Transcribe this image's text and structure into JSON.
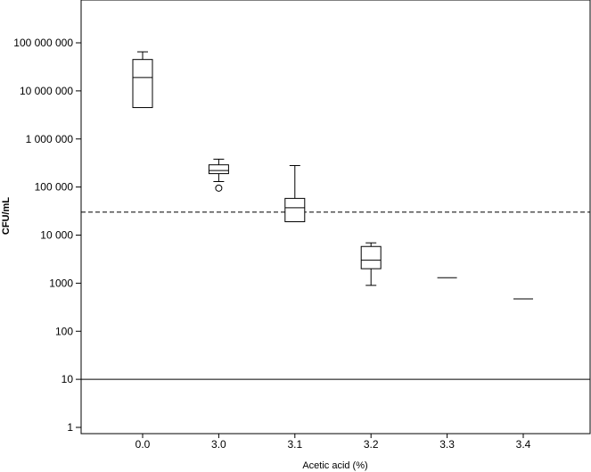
{
  "chart_data": {
    "type": "box",
    "xlabel": "Acetic acid (%)",
    "ylabel": "CFU/mL",
    "yscale": "log",
    "ylim": [
      1,
      1000000000
    ],
    "y_tick_values": [
      1,
      10,
      100,
      1000,
      10000,
      100000,
      1000000,
      10000000,
      100000000
    ],
    "y_tick_labels": [
      "1",
      "10",
      "100",
      "1000",
      "10 000",
      "100 000",
      "1 000 000",
      "10 000 000",
      "100 000 000"
    ],
    "categories": [
      "0.0",
      "3.0",
      "3.1",
      "3.2",
      "3.3",
      "3.4"
    ],
    "boxes": [
      {
        "category": "0.0",
        "whisker_low": 4500000,
        "q1": 4500000,
        "median": 19000000,
        "q3": 45000000,
        "whisker_high": 65000000,
        "outliers": []
      },
      {
        "category": "3.0",
        "whisker_low": 130000,
        "q1": 190000,
        "median": 220000,
        "q3": 290000,
        "whisker_high": 380000,
        "outliers": [
          95000
        ]
      },
      {
        "category": "3.1",
        "whisker_low": 19000,
        "q1": 19000,
        "median": 37000,
        "q3": 58000,
        "whisker_high": 280000,
        "outliers": []
      },
      {
        "category": "3.2",
        "whisker_low": 900,
        "q1": 2000,
        "median": 3000,
        "q3": 5800,
        "whisker_high": 6900,
        "outliers": []
      },
      {
        "category": "3.3",
        "whisker_low": 1300,
        "q1": 1300,
        "median": 1300,
        "q3": 1300,
        "whisker_high": 1300,
        "outliers": []
      },
      {
        "category": "3.4",
        "whisker_low": 470,
        "q1": 470,
        "median": 470,
        "q3": 470,
        "whisker_high": 470,
        "outliers": []
      }
    ],
    "reference_lines": [
      {
        "y": 30000,
        "style": "dashed"
      },
      {
        "y": 10,
        "style": "solid"
      }
    ],
    "grid": false,
    "colors": {
      "box_fill": "#ffffff",
      "stroke": "#000000",
      "background": "#ffffff"
    }
  }
}
